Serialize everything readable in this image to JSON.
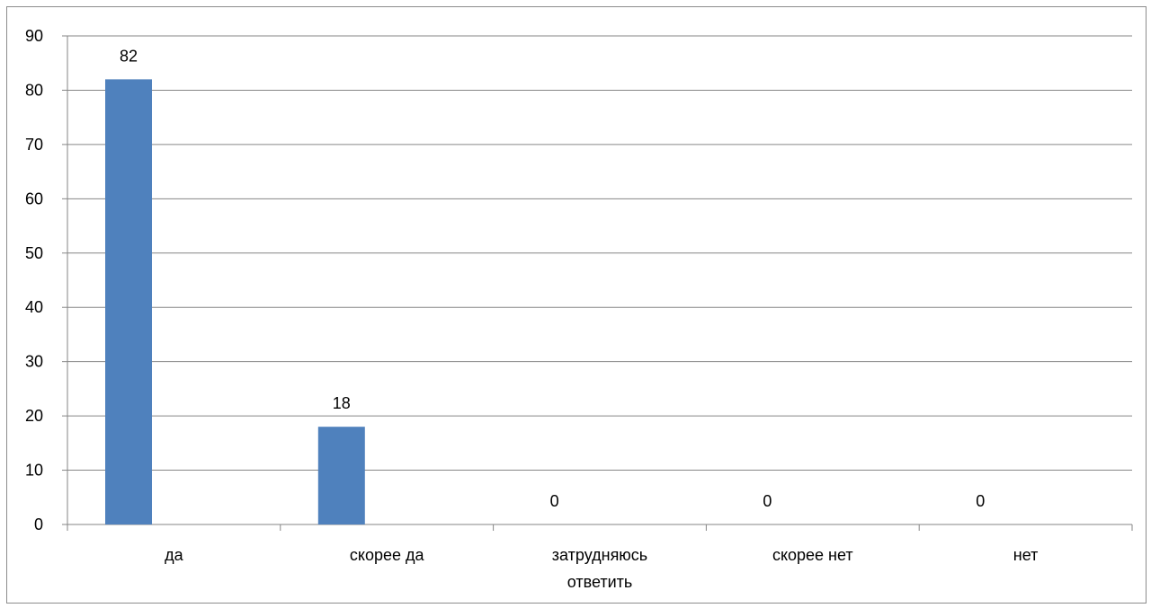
{
  "chart_data": {
    "type": "bar",
    "categories": [
      [
        "да"
      ],
      [
        "скорее да"
      ],
      [
        "затрудняюсь",
        "ответить"
      ],
      [
        "скорее нет"
      ],
      [
        "нет"
      ]
    ],
    "values": [
      82,
      18,
      0,
      0,
      0
    ],
    "data_labels": [
      "82",
      "18",
      "0",
      "0",
      "0"
    ],
    "yticks": [
      "0",
      "10",
      "20",
      "30",
      "40",
      "50",
      "60",
      "70",
      "80",
      "90"
    ],
    "ylim": [
      0,
      90
    ],
    "title": "",
    "xlabel": "",
    "ylabel": "",
    "grid": true,
    "legend": false,
    "bar_color": "#4f81bd",
    "grid_color": "#868686"
  }
}
